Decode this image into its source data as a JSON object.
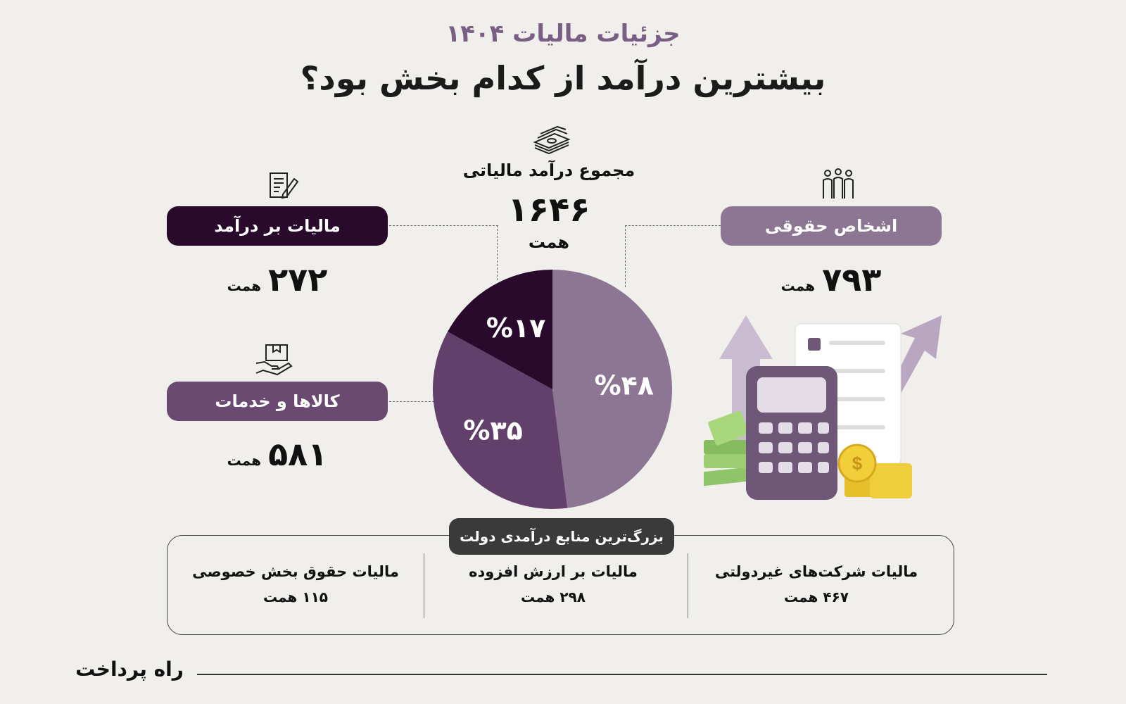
{
  "header": {
    "subtitle": "جزئیات مالیات ۱۴۰۴",
    "title": "بیشترین درآمد از کدام بخش بود؟"
  },
  "total": {
    "label": "مجموع درآمد مالیاتی",
    "value": "۱۶۴۶",
    "unit": "همت"
  },
  "categories": [
    {
      "label": "اشخاص حقوقی",
      "value": "۷۹۳",
      "unit": "همت",
      "icon": "people-icon"
    },
    {
      "label": "مالیات بر درآمد",
      "value": "۲۷۲",
      "unit": "همت",
      "icon": "document-pen-icon"
    },
    {
      "label": "کالاها و خدمات",
      "value": "۵۸۱",
      "unit": "همت",
      "icon": "handshake-box-icon"
    }
  ],
  "chart_data": {
    "type": "pie",
    "slices": [
      {
        "label": "اشخاص حقوقی",
        "percent": 48,
        "percent_label": "%۴۸",
        "color": "#8c7693"
      },
      {
        "label": "کالاها و خدمات",
        "percent": 35,
        "percent_label": "%۳۵",
        "color": "#62406b"
      },
      {
        "label": "مالیات بر درآمد",
        "percent": 17,
        "percent_label": "%۱۷",
        "color": "#2a0a2c"
      }
    ]
  },
  "sources": {
    "heading": "بزرگ‌ترین منابع درآمدی دولت",
    "items": [
      {
        "name": "مالیات شرکت‌های غیردولتی",
        "value": "۴۶۷ همت"
      },
      {
        "name": "مالیات بر ارزش افزوده",
        "value": "۲۹۸ همت"
      },
      {
        "name": "مالیات حقوق بخش خصوصی",
        "value": "۱۱۵ همت"
      }
    ]
  },
  "footer": {
    "brand": "راه پرداخت"
  },
  "colors": {
    "background": "#f1efeb",
    "accent_dark": "#2a0a2c",
    "accent_mid": "#62406b",
    "accent_light": "#8c7693",
    "subtitle": "#7a5f85"
  }
}
